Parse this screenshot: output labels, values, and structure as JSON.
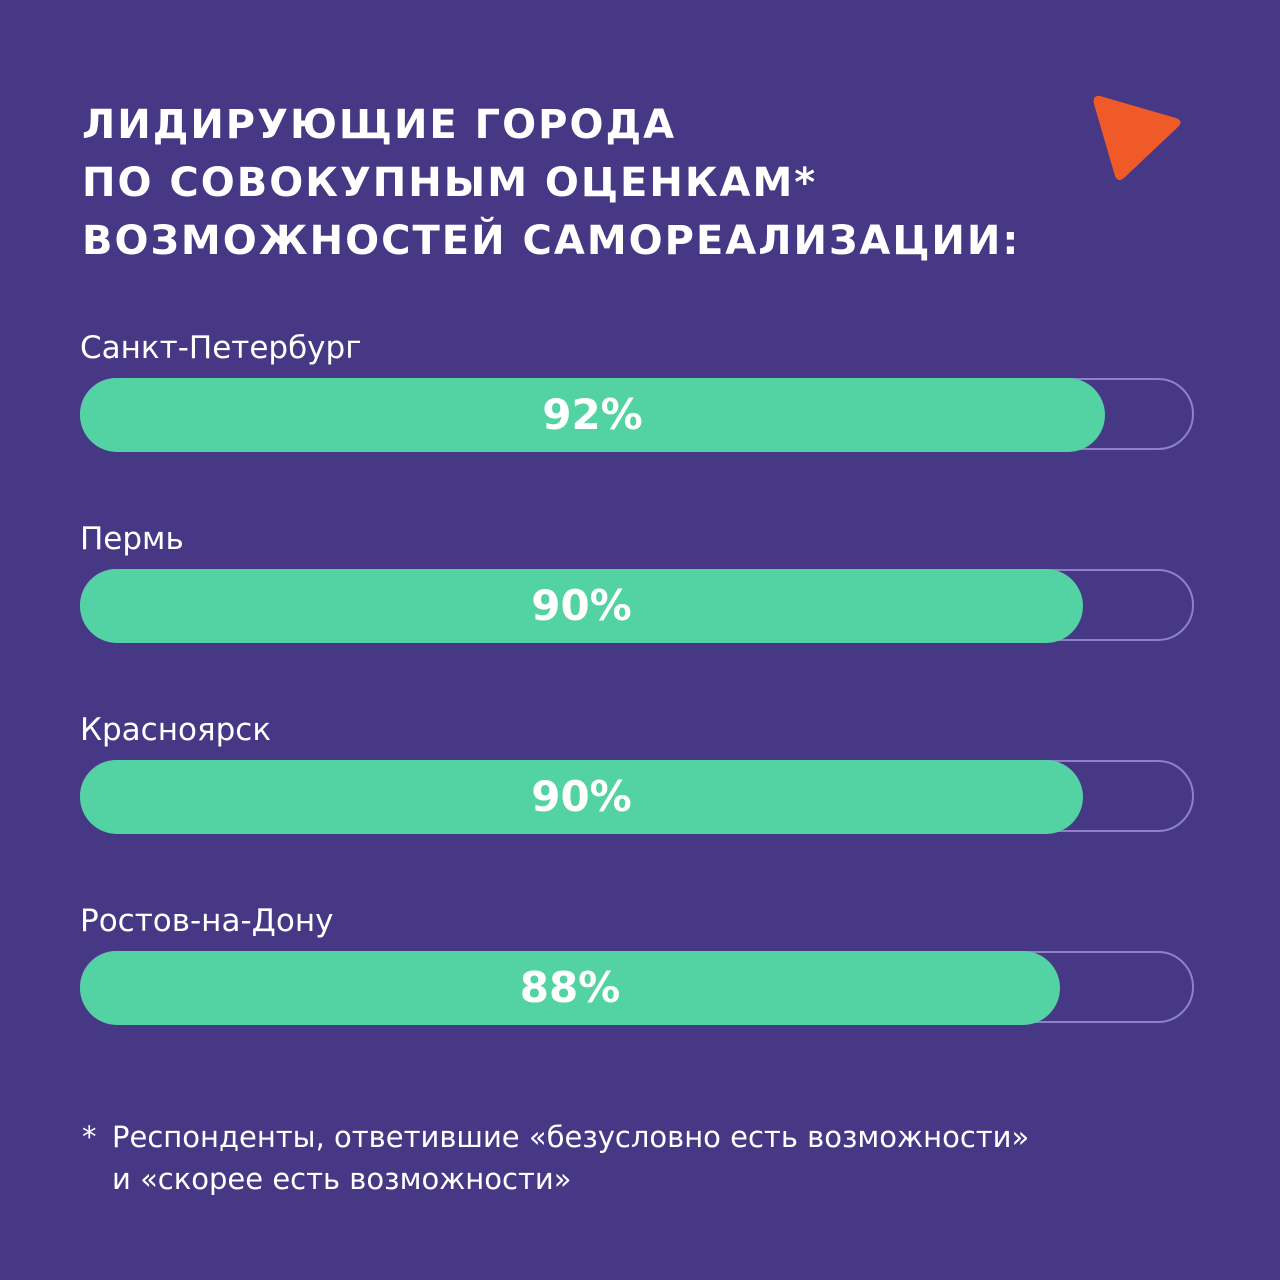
{
  "title": {
    "lines": [
      "ЛИДИРУЮЩИЕ ГОРОДА",
      "ПО СОВОКУПНЫМ ОЦЕНКАМ*",
      "ВОЗМОЖНОСТЕЙ САМОРЕАЛИЗАЦИИ:"
    ]
  },
  "logo": {
    "icon": "play-triangle-icon",
    "color": "#f05a28"
  },
  "colors": {
    "background": "#463885",
    "bar_fill": "#53d2a3",
    "bar_track": "#8d82c6",
    "text": "#ffffff"
  },
  "chart_data": {
    "type": "bar",
    "orientation": "horizontal",
    "categories": [
      "Санкт-Петербург",
      "Пермь",
      "Красноярск",
      "Ростов-на-Дону"
    ],
    "values": [
      92,
      90,
      90,
      88
    ],
    "value_labels": [
      "92%",
      "90%",
      "90%",
      "88%"
    ],
    "title": "ЛИДИРУЮЩИЕ ГОРОДА ПО СОВОКУПНЫМ ОЦЕНКАМ* ВОЗМОЖНОСТЕЙ САМОРЕАЛИЗАЦИИ:",
    "xlim": [
      0,
      100
    ],
    "grid": false
  },
  "footnote": {
    "star": "*",
    "lines": [
      "Респонденты, ответившие «безусловно есть возможности»",
      "и «скорее есть возможности»"
    ]
  }
}
